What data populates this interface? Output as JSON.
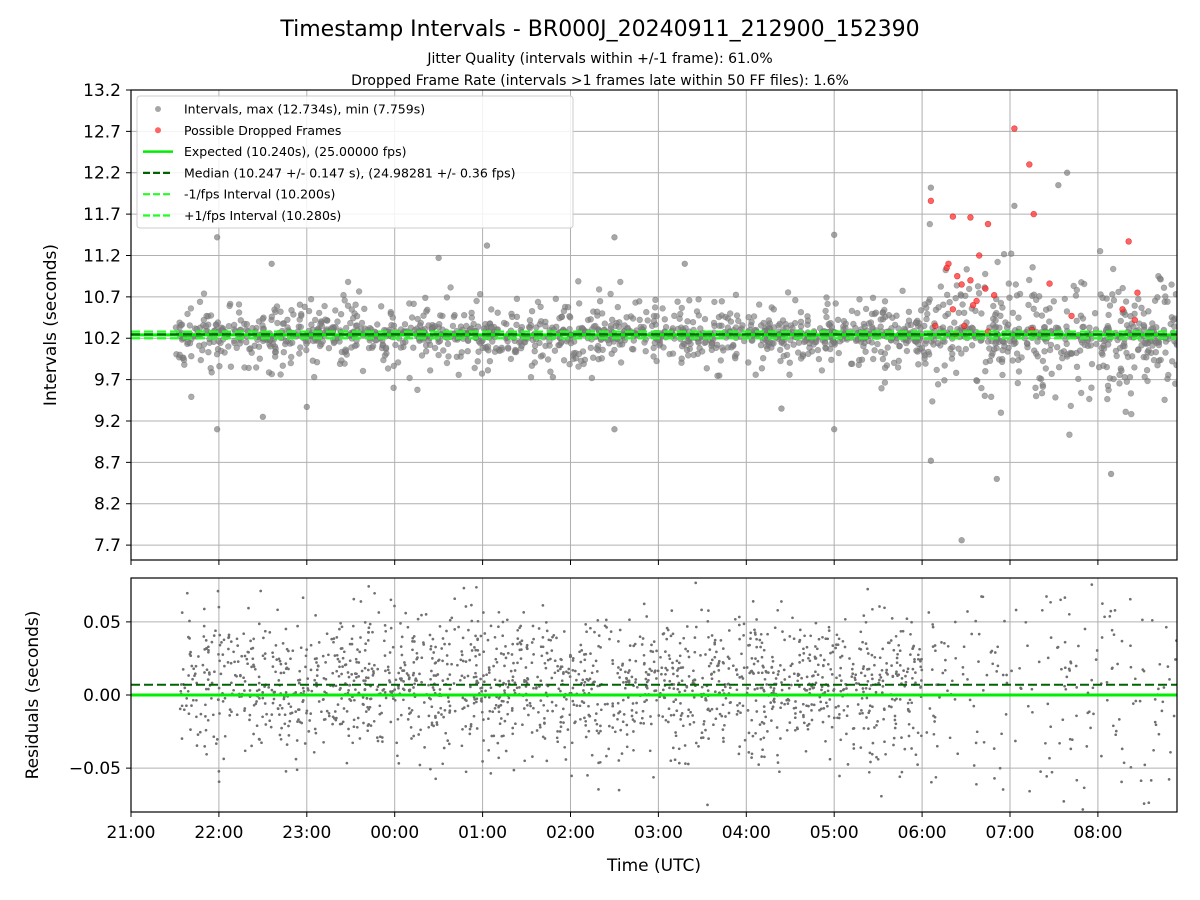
{
  "chart_data": [
    {
      "type": "scatter",
      "title": "Timestamp Intervals - BR000J_20240911_212900_152390",
      "subtitles": [
        "Jitter Quality (intervals within +/-1 frame): 61.0%",
        "Dropped Frame Rate (intervals >1 frames late within 50 FF files): 1.6%"
      ],
      "ylabel": "Intervals (seconds)",
      "xlabel": "",
      "xlim": [
        21.0,
        32.9
      ],
      "ylim": [
        7.52,
        13.2
      ],
      "yticks": [
        7.7,
        8.2,
        8.7,
        9.2,
        9.7,
        10.2,
        10.7,
        11.2,
        11.7,
        12.2,
        12.7,
        13.2
      ],
      "ytick_labels": [
        "7.7",
        "8.2",
        "8.7",
        "9.2",
        "9.7",
        "10.2",
        "10.7",
        "11.2",
        "11.7",
        "12.2",
        "12.7",
        "13.2"
      ],
      "xticks": [
        21,
        22,
        23,
        24,
        25,
        26,
        27,
        28,
        29,
        30,
        31,
        32
      ],
      "grid": true,
      "legend_position": "upper-left",
      "legend": [
        "Intervals, max (12.734s), min (7.759s)",
        "Possible Dropped Frames",
        "Expected (10.240s), (25.00000 fps)",
        "Median (10.247 +/- 0.147 s), (24.98281 +/- 0.36 fps)",
        "-1/fps Interval (10.200s)",
        "+1/fps Interval (10.280s)"
      ],
      "lines": [
        {
          "name": "expected",
          "y": 10.24,
          "color": "#00ee00",
          "style": "solid"
        },
        {
          "name": "median",
          "y": 10.247,
          "color": "#006400",
          "style": "dashed"
        },
        {
          "name": "minus_one_fps",
          "y": 10.2,
          "color": "#22ff22",
          "style": "dashed"
        },
        {
          "name": "plus_one_fps",
          "y": 10.28,
          "color": "#22ff22",
          "style": "dashed"
        }
      ],
      "series": [
        {
          "name": "intervals",
          "color": "#808080",
          "x_start": 21.5,
          "x_end": 32.9,
          "points_sample": [
            [
              21.6,
              10.2
            ],
            [
              21.98,
              11.42
            ],
            [
              21.98,
              9.1
            ],
            [
              22.5,
              9.25
            ],
            [
              22.6,
              11.1
            ],
            [
              23.0,
              9.37
            ],
            [
              24.5,
              11.17
            ],
            [
              25.05,
              11.32
            ],
            [
              25.8,
              9.73
            ],
            [
              26.5,
              11.42
            ],
            [
              26.5,
              9.1
            ],
            [
              27.3,
              11.1
            ],
            [
              28.4,
              9.35
            ],
            [
              29.0,
              11.45
            ],
            [
              29.0,
              9.1
            ],
            [
              30.1,
              12.02
            ],
            [
              30.1,
              8.72
            ],
            [
              30.45,
              7.759
            ],
            [
              30.85,
              8.5
            ],
            [
              31.05,
              11.8
            ],
            [
              31.55,
              12.05
            ],
            [
              31.65,
              12.2
            ],
            [
              32.15,
              8.56
            ],
            [
              32.75,
              10.3
            ]
          ],
          "max": 12.734,
          "min": 7.759
        },
        {
          "name": "dropped",
          "color": "#ff3030",
          "points": [
            [
              30.1,
              11.86
            ],
            [
              30.35,
              11.67
            ],
            [
              30.55,
              11.66
            ],
            [
              30.75,
              11.58
            ],
            [
              31.05,
              12.734
            ],
            [
              31.22,
              12.3
            ],
            [
              31.27,
              11.7
            ],
            [
              31.45,
              10.86
            ],
            [
              31.7,
              10.47
            ],
            [
              32.35,
              11.37
            ],
            [
              32.28,
              10.55
            ],
            [
              32.45,
              10.75
            ],
            [
              32.42,
              10.42
            ],
            [
              30.3,
              11.1
            ],
            [
              30.4,
              10.95
            ],
            [
              30.55,
              10.9
            ],
            [
              30.72,
              10.8
            ],
            [
              30.82,
              10.72
            ],
            [
              30.35,
              10.55
            ],
            [
              30.48,
              10.35
            ],
            [
              30.15,
              10.35
            ],
            [
              30.62,
              10.65
            ],
            [
              30.75,
              10.28
            ],
            [
              31.25,
              10.3
            ],
            [
              30.38,
              10.25
            ],
            [
              30.45,
              10.85
            ],
            [
              30.28,
              11.05
            ],
            [
              30.65,
              11.2
            ],
            [
              30.58,
              10.6
            ]
          ]
        }
      ]
    },
    {
      "type": "scatter",
      "title": "",
      "xlabel": "Time (UTC)",
      "ylabel": "Residuals (seconds)",
      "xlim": [
        21.0,
        32.9
      ],
      "ylim": [
        -0.08,
        0.08
      ],
      "yticks": [
        -0.05,
        0.0,
        0.05
      ],
      "ytick_labels": [
        "−0.05",
        "0.00",
        "0.05"
      ],
      "xticks": [
        21,
        22,
        23,
        24,
        25,
        26,
        27,
        28,
        29,
        30,
        31,
        32
      ],
      "xtick_labels": [
        "21:00",
        "22:00",
        "23:00",
        "00:00",
        "01:00",
        "02:00",
        "03:00",
        "04:00",
        "05:00",
        "06:00",
        "07:00",
        "08:00"
      ],
      "grid": true,
      "lines": [
        {
          "name": "zero",
          "y": 0.0,
          "color": "#00ee00",
          "style": "solid"
        },
        {
          "name": "median_offset",
          "y": 0.007,
          "color": "#006400",
          "style": "dashed"
        }
      ],
      "series": [
        {
          "name": "residuals",
          "color": "#707070",
          "x_start": 21.55,
          "x_end": 32.9,
          "spread": 0.025
        }
      ]
    }
  ]
}
